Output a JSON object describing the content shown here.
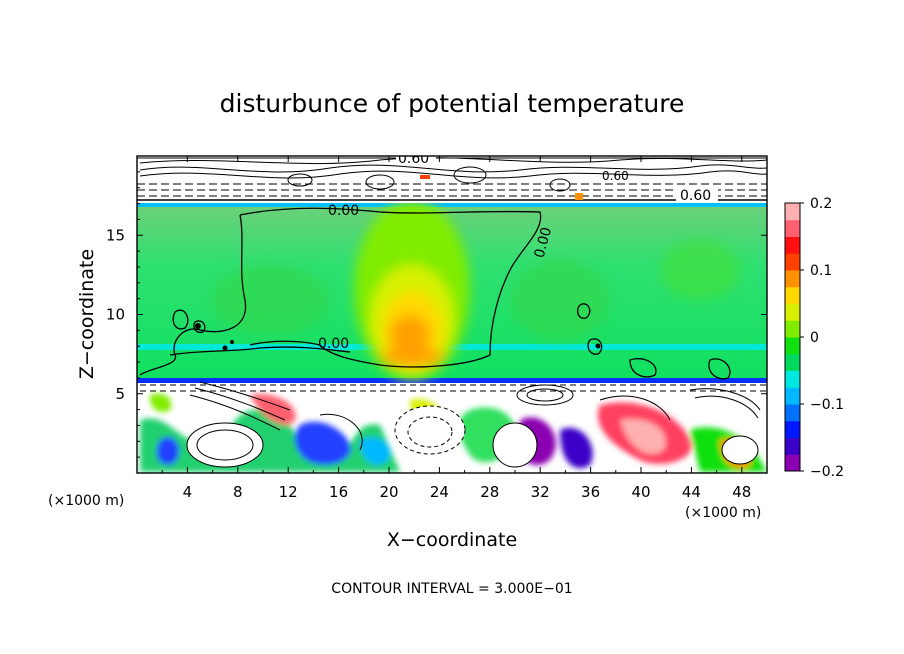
{
  "chart_data": {
    "type": "heatmap",
    "title": "disturbunce of potential temperature",
    "xlabel": "X−coordinate",
    "ylabel": "Z−coordinate",
    "x_unit_left": "(×1000 m)",
    "x_unit_right": "(×1000 m)",
    "xlim": [
      0,
      50
    ],
    "ylim": [
      0,
      20
    ],
    "x_ticks": [
      4,
      8,
      12,
      16,
      20,
      24,
      28,
      32,
      36,
      40,
      44,
      48
    ],
    "x_tick_labels": [
      "4",
      "8",
      "12",
      "16",
      "20",
      "24",
      "28",
      "32",
      "36",
      "40",
      "44",
      "48"
    ],
    "y_ticks": [
      5,
      10,
      15
    ],
    "y_tick_labels": [
      "5",
      "10",
      "15"
    ],
    "colorbar": {
      "range": [
        -0.2,
        0.2
      ],
      "tick_values": [
        0.2,
        0.1,
        0,
        -0.1,
        -0.2
      ],
      "tick_labels": [
        "0.2",
        "0.1",
        "0",
        "−0.1",
        "−0.2"
      ],
      "colors": [
        "#8b00b0",
        "#3a00c8",
        "#0018ff",
        "#0070ff",
        "#00b8ff",
        "#00e8e0",
        "#00d860",
        "#10e010",
        "#80ec00",
        "#d8f000",
        "#ffd800",
        "#ff9000",
        "#ff4000",
        "#ff1010",
        "#ff6070",
        "#ffb0b0"
      ]
    },
    "contour_labels": [
      {
        "text": "0.60",
        "x": 24.0,
        "y": 19.8
      },
      {
        "text": "0.60",
        "x": 45.5,
        "y": 17.8
      },
      {
        "text": "0.60",
        "x": 38.0,
        "y": 18.7
      },
      {
        "text": "0.00",
        "x": 15.5,
        "y": 16.5
      },
      {
        "text": "0.00",
        "x": 31.0,
        "y": 14.0
      },
      {
        "text": "0.00",
        "x": 16.0,
        "y": 8.3
      }
    ],
    "contour_interval_text": "CONTOUR INTERVAL = 3.000E−01",
    "grid": false
  }
}
